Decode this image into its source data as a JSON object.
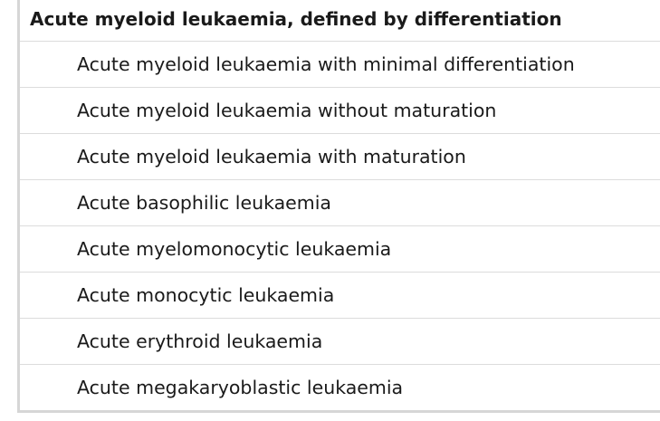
{
  "table": {
    "header": "Acute myeloid leukaemia, defined by differentiation",
    "rows": [
      "Acute myeloid leukaemia with minimal differentiation",
      "Acute myeloid leukaemia without maturation",
      "Acute myeloid leukaemia with maturation",
      "Acute basophilic leukaemia",
      "Acute myelomonocytic leukaemia",
      "Acute monocytic leukaemia",
      "Acute erythroid leukaemia",
      "Acute megakaryoblastic leukaemia"
    ]
  }
}
